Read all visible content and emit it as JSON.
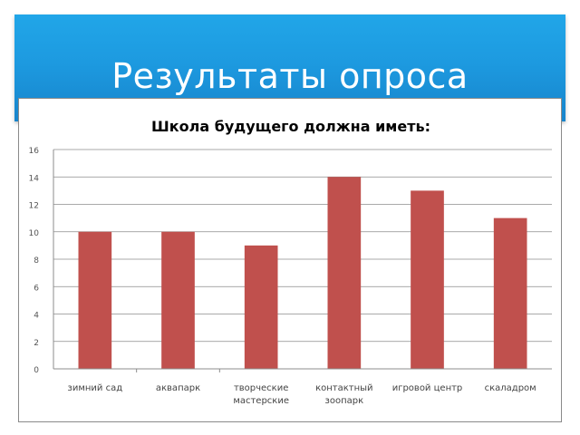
{
  "slide": {
    "title": "Результаты опроса"
  },
  "chart_data": {
    "type": "bar",
    "title": "Школа будущего должна иметь:",
    "categories": [
      [
        "зимний сад"
      ],
      [
        "аквапарк"
      ],
      [
        "творческие",
        "мастерские"
      ],
      [
        "контактный",
        "зоопарк"
      ],
      [
        "игровой центр"
      ],
      [
        "скаладром"
      ]
    ],
    "values": [
      10,
      10,
      9,
      14,
      13,
      11
    ],
    "ylim": [
      0,
      16
    ],
    "yticks": [
      "0",
      "2",
      "4",
      "6",
      "8",
      "10",
      "12",
      "14",
      "16"
    ],
    "grid": true,
    "legend": "none",
    "bar_color": "#c0504d",
    "grid_color": "#8c8c8c"
  }
}
